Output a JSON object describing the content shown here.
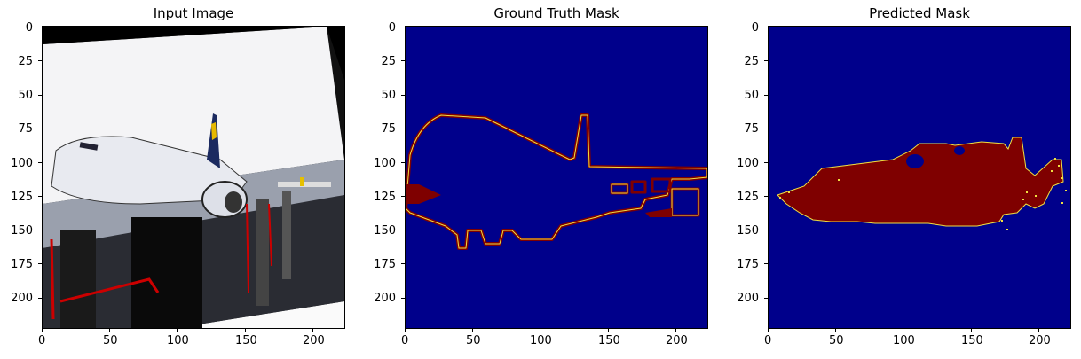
{
  "panels": [
    {
      "title": "Input Image"
    },
    {
      "title": "Ground Truth Mask"
    },
    {
      "title": "Predicted Mask"
    }
  ],
  "axes": {
    "x_ticks": [
      "0",
      "50",
      "100",
      "150",
      "200"
    ],
    "y_ticks": [
      "0",
      "25",
      "50",
      "75",
      "100",
      "125",
      "150",
      "175",
      "200"
    ]
  },
  "colors": {
    "mask_background": "#00008b",
    "mask_foreground": "#7f0000",
    "edge_yellow": "#f0e040"
  }
}
